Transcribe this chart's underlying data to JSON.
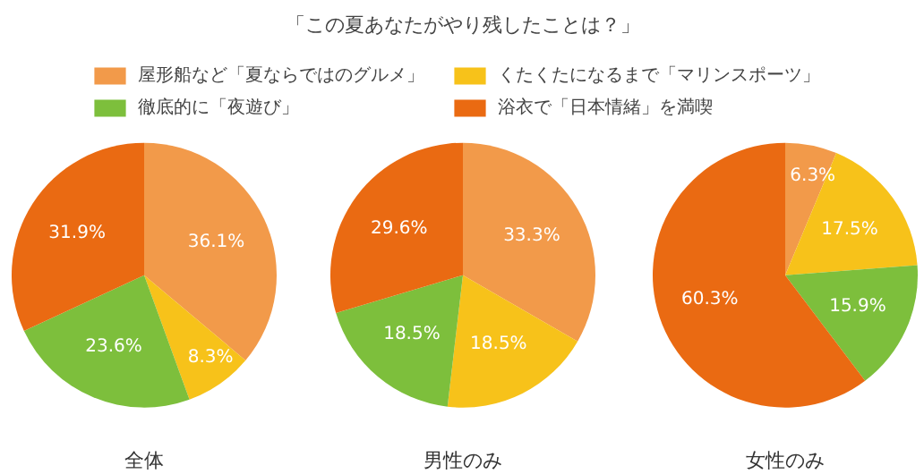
{
  "chart_data": [
    {
      "type": "pie",
      "xlabel": "全体",
      "legend": "top",
      "categories": [
        "屋形船など「夏ならではのグルメ」",
        "くたくたになるまで「マリンスポーツ」",
        "徹底的に「夜遊び」",
        "浴衣で「日本情緒」を満喫"
      ],
      "values": [
        36.1,
        8.3,
        23.6,
        31.9
      ],
      "value_labels": [
        "36.1%",
        "8.3%",
        "23.6%",
        "31.9%"
      ],
      "colors": [
        "#f29a4a",
        "#f7c21a",
        "#7dbf3c",
        "#ea6a12"
      ]
    },
    {
      "type": "pie",
      "title": "「この夏あなたがやり残したことは？」",
      "xlabel": "男性のみ",
      "values": [
        33.3,
        18.5,
        18.5,
        29.6
      ],
      "value_labels": [
        "33.3%",
        "18.5%",
        "18.5%",
        "29.6%"
      ],
      "colors": [
        "#f29a4a",
        "#f7c21a",
        "#7dbf3c",
        "#ea6a12"
      ]
    },
    {
      "type": "pie",
      "xlabel": "女性のみ",
      "values": [
        6.3,
        17.5,
        15.9,
        60.3
      ],
      "value_labels": [
        "6.3%",
        "17.5%",
        "15.9%",
        "60.3%"
      ],
      "colors": [
        "#f29a4a",
        "#f7c21a",
        "#7dbf3c",
        "#ea6a12"
      ]
    }
  ]
}
